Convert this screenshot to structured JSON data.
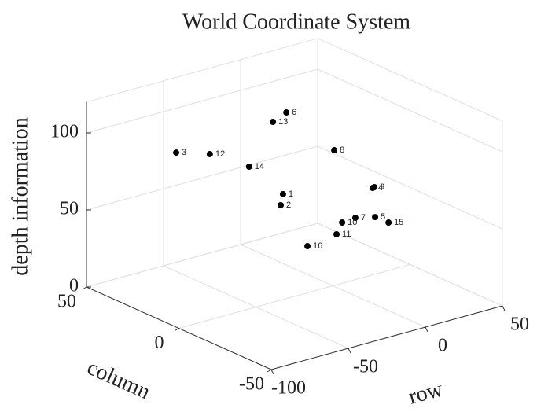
{
  "chart_data": {
    "type": "scatter3d",
    "title": "World Coordinate System",
    "xlabel": "row",
    "ylabel": "column",
    "zlabel": "depth information",
    "labels": [
      "1",
      "2",
      "3",
      "4",
      "5",
      "6",
      "7",
      "8",
      "9",
      "10",
      "11",
      "12",
      "13",
      "14",
      "15",
      "16"
    ],
    "x": [
      -20.8,
      -24.7,
      -74.8,
      27.7,
      30.2,
      -15.3,
      21.6,
      25.4,
      27.7,
      19.0,
      13.1,
      -55.7,
      -22.2,
      -37.4,
      37.6,
      -2.3
    ],
    "y": [
      9.7,
      7.7,
      22.5,
      1.6,
      2.4,
      12.5,
      5.9,
      20.5,
      0.7,
      10.9,
      9.0,
      20.2,
      14.0,
      14.2,
      1.3,
      11.9
    ],
    "z": [
      60,
      55,
      95,
      55,
      35,
      110,
      35,
      70,
      56,
      30,
      25,
      90,
      105,
      80,
      30,
      20
    ],
    "color": "#000000",
    "xlim": [
      -100,
      50
    ],
    "ylim": [
      -50,
      50
    ],
    "zlim": [
      0,
      120
    ],
    "xticks": [
      -100,
      -50,
      0,
      50
    ],
    "yticks": [
      -50,
      0,
      50
    ],
    "zticks": [
      0,
      50,
      100
    ],
    "grid": true
  }
}
